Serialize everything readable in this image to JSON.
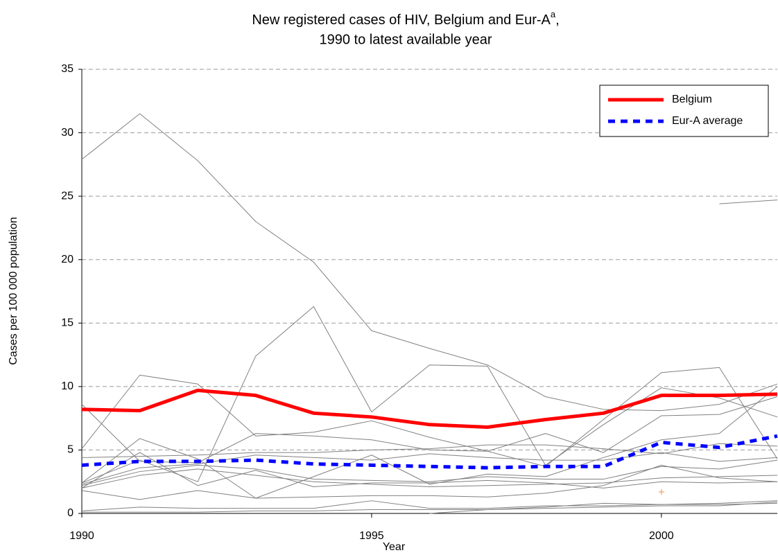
{
  "chart_data": {
    "type": "line",
    "title": "New registered cases of HIV, Belgium and Eur-A",
    "title_superscript": "a",
    "title_end": ",",
    "subtitle": "1990 to latest available year",
    "x_label": "Year",
    "y_label": "Cases per 100 000 population",
    "x": [
      1990,
      1991,
      1992,
      1993,
      1994,
      1995,
      1996,
      1997,
      1998,
      1999,
      2000,
      2001,
      2002
    ],
    "xlim": [
      1990,
      2002
    ],
    "xticks": [
      1990,
      1995,
      2000
    ],
    "ylim": [
      0,
      35
    ],
    "yticks": [
      0,
      5,
      10,
      15,
      20,
      25,
      30,
      35
    ],
    "grid": true,
    "legend": "upper right",
    "series": [
      {
        "color": "#808080",
        "values": [
          27.9,
          31.5,
          27.8,
          23.0,
          19.8,
          14.4,
          13.0,
          11.7,
          9.2,
          8.2,
          8.1,
          8.6,
          10.2
        ]
      },
      {
        "color": "#808080",
        "values": [
          5.1,
          10.9,
          10.2,
          6.1,
          6.4,
          7.3,
          6.0,
          4.9,
          3.7,
          7.4,
          11.1,
          11.5,
          4.3
        ]
      },
      {
        "color": "#808080",
        "values": [
          2.4,
          4.2,
          2.5,
          12.4,
          16.3,
          8.0,
          11.7,
          11.6,
          3.8,
          7.0,
          9.9,
          9.1,
          7.6
        ]
      },
      {
        "color": "#808080",
        "values": [
          8.6,
          4.1,
          4.0,
          6.3,
          6.1,
          5.8,
          5.0,
          4.9,
          6.3,
          4.8,
          7.7,
          7.8,
          9.2
        ]
      },
      {
        "color": "#808080",
        "values": [
          2.4,
          5.9,
          4.3,
          1.2,
          2.9,
          4.6,
          2.3,
          3.1,
          2.9,
          4.4,
          5.8,
          6.3,
          10.0
        ]
      },
      {
        "color": "#808080",
        "values": [
          1.8,
          1.1,
          1.8,
          1.2,
          1.3,
          1.4,
          1.4,
          1.3,
          1.6,
          2.2,
          3.8,
          2.8,
          2.5
        ]
      },
      {
        "color": "#808080",
        "values": [
          2.2,
          3.3,
          3.8,
          3.5,
          2.7,
          2.6,
          2.5,
          2.9,
          2.7,
          2.7,
          3.7,
          3.5,
          4.2
        ]
      },
      {
        "color": "#808080",
        "values": [
          2.0,
          3.0,
          3.5,
          3.0,
          2.5,
          2.3,
          2.1,
          2.2,
          2.3,
          2.4,
          2.8,
          2.9,
          3.0
        ]
      },
      {
        "color": "#808080",
        "values": [
          2.0,
          4.8,
          2.2,
          3.4,
          2.1,
          2.4,
          2.4,
          2.6,
          2.4,
          2.0,
          2.5,
          2.4,
          2.5
        ]
      },
      {
        "color": "#808080",
        "values": [
          0.2,
          0.5,
          0.4,
          0.4,
          0.4,
          1.0,
          0.4,
          0.4,
          0.6,
          0.6,
          0.7,
          0.8,
          1.0
        ]
      },
      {
        "color": "#808080",
        "values": [
          0.1,
          0.1,
          0.1,
          0.2,
          0.2,
          0.3,
          0.3,
          0.3,
          0.4,
          0.5,
          0.6,
          0.6,
          0.9
        ]
      },
      {
        "color": "#808080",
        "values": [
          null,
          null,
          null,
          null,
          null,
          null,
          0.0,
          0.3,
          0.5,
          0.8,
          0.7,
          0.7,
          0.8
        ]
      },
      {
        "color": "#808080",
        "values": [
          null,
          null,
          null,
          null,
          null,
          null,
          null,
          null,
          null,
          null,
          null,
          24.4,
          24.7
        ]
      },
      {
        "color": "#808080",
        "values": [
          4.4,
          4.5,
          4.6,
          4.8,
          4.8,
          5.0,
          5.1,
          5.4,
          5.4,
          5.1,
          4.7,
          5.5,
          5.3
        ]
      },
      {
        "color": "#808080",
        "values": [
          2.3,
          3.6,
          3.9,
          4.6,
          4.4,
          4.2,
          4.7,
          4.4,
          4.2,
          4.2,
          4.8,
          4.1,
          4.4
        ]
      },
      {
        "color": "#f4b183",
        "marker": "plus",
        "values": [
          null,
          null,
          null,
          null,
          null,
          null,
          null,
          null,
          null,
          null,
          1.7,
          null,
          null
        ]
      },
      {
        "name": "Belgium",
        "color": "#ff0000",
        "linestyle": "solid",
        "values": [
          8.2,
          8.1,
          9.7,
          9.3,
          7.9,
          7.6,
          7.0,
          6.8,
          7.4,
          7.9,
          9.3,
          9.3,
          9.4
        ]
      },
      {
        "name": "Eur-A average",
        "color": "#0000ff",
        "linestyle": "dashed",
        "values": [
          3.8,
          4.1,
          4.1,
          4.2,
          3.9,
          3.8,
          3.7,
          3.6,
          3.7,
          3.7,
          5.6,
          5.2,
          6.1
        ]
      }
    ]
  }
}
